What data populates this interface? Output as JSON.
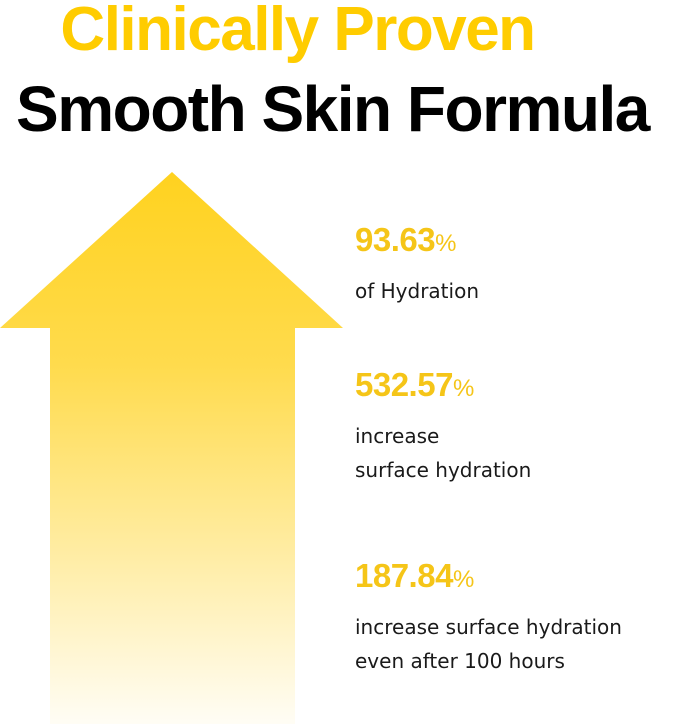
{
  "heading": {
    "line1": "Clinically Proven",
    "line2": "Smooth Skin Formula"
  },
  "colors": {
    "accent": "#FFCC00",
    "stat": "#F5C518",
    "text": "#000000"
  },
  "arrow_icon": "up-arrow-gradient",
  "stats": [
    {
      "value": "93.63",
      "unit": "%",
      "lines": [
        "of Hydration"
      ]
    },
    {
      "value": "532.57",
      "unit": "%",
      "lines": [
        "increase",
        "surface hydration"
      ]
    },
    {
      "value": "187.84",
      "unit": "%",
      "lines": [
        "increase surface hydration",
        "even after 100 hours"
      ]
    }
  ]
}
